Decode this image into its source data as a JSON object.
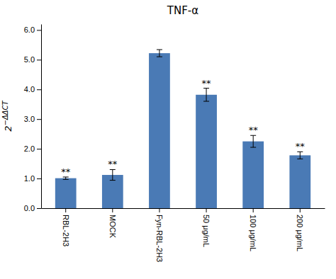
{
  "chart_data": {
    "type": "bar",
    "title": "TNF-α",
    "categories": [
      "RBL-2H3",
      "MOCK",
      "Fyn-RBL-2H3",
      "50 μg/mL",
      "100 μg/mL",
      "200 μg/mL"
    ],
    "values": [
      1.01,
      1.12,
      5.22,
      3.82,
      2.25,
      1.78
    ],
    "errors": [
      0.04,
      0.18,
      0.12,
      0.22,
      0.2,
      0.12
    ],
    "annotations": [
      "**",
      "**",
      null,
      "**",
      "**",
      "**"
    ],
    "color": "#4a7ab5",
    "ylabel": "2−ΔΔCT",
    "ylim": [
      0,
      6.2
    ],
    "yticks": [
      {
        "value": 0.0,
        "label": "0.0"
      },
      {
        "value": 1.0,
        "label": "1.0"
      },
      {
        "value": 2.0,
        "label": "2.0"
      },
      {
        "value": 3.0,
        "label": "3.0"
      },
      {
        "value": 4.0,
        "label": "4.0"
      },
      {
        "value": 5.0,
        "label": "5.0"
      },
      {
        "value": 6.0,
        "label": "6.0"
      }
    ],
    "grid": false
  }
}
